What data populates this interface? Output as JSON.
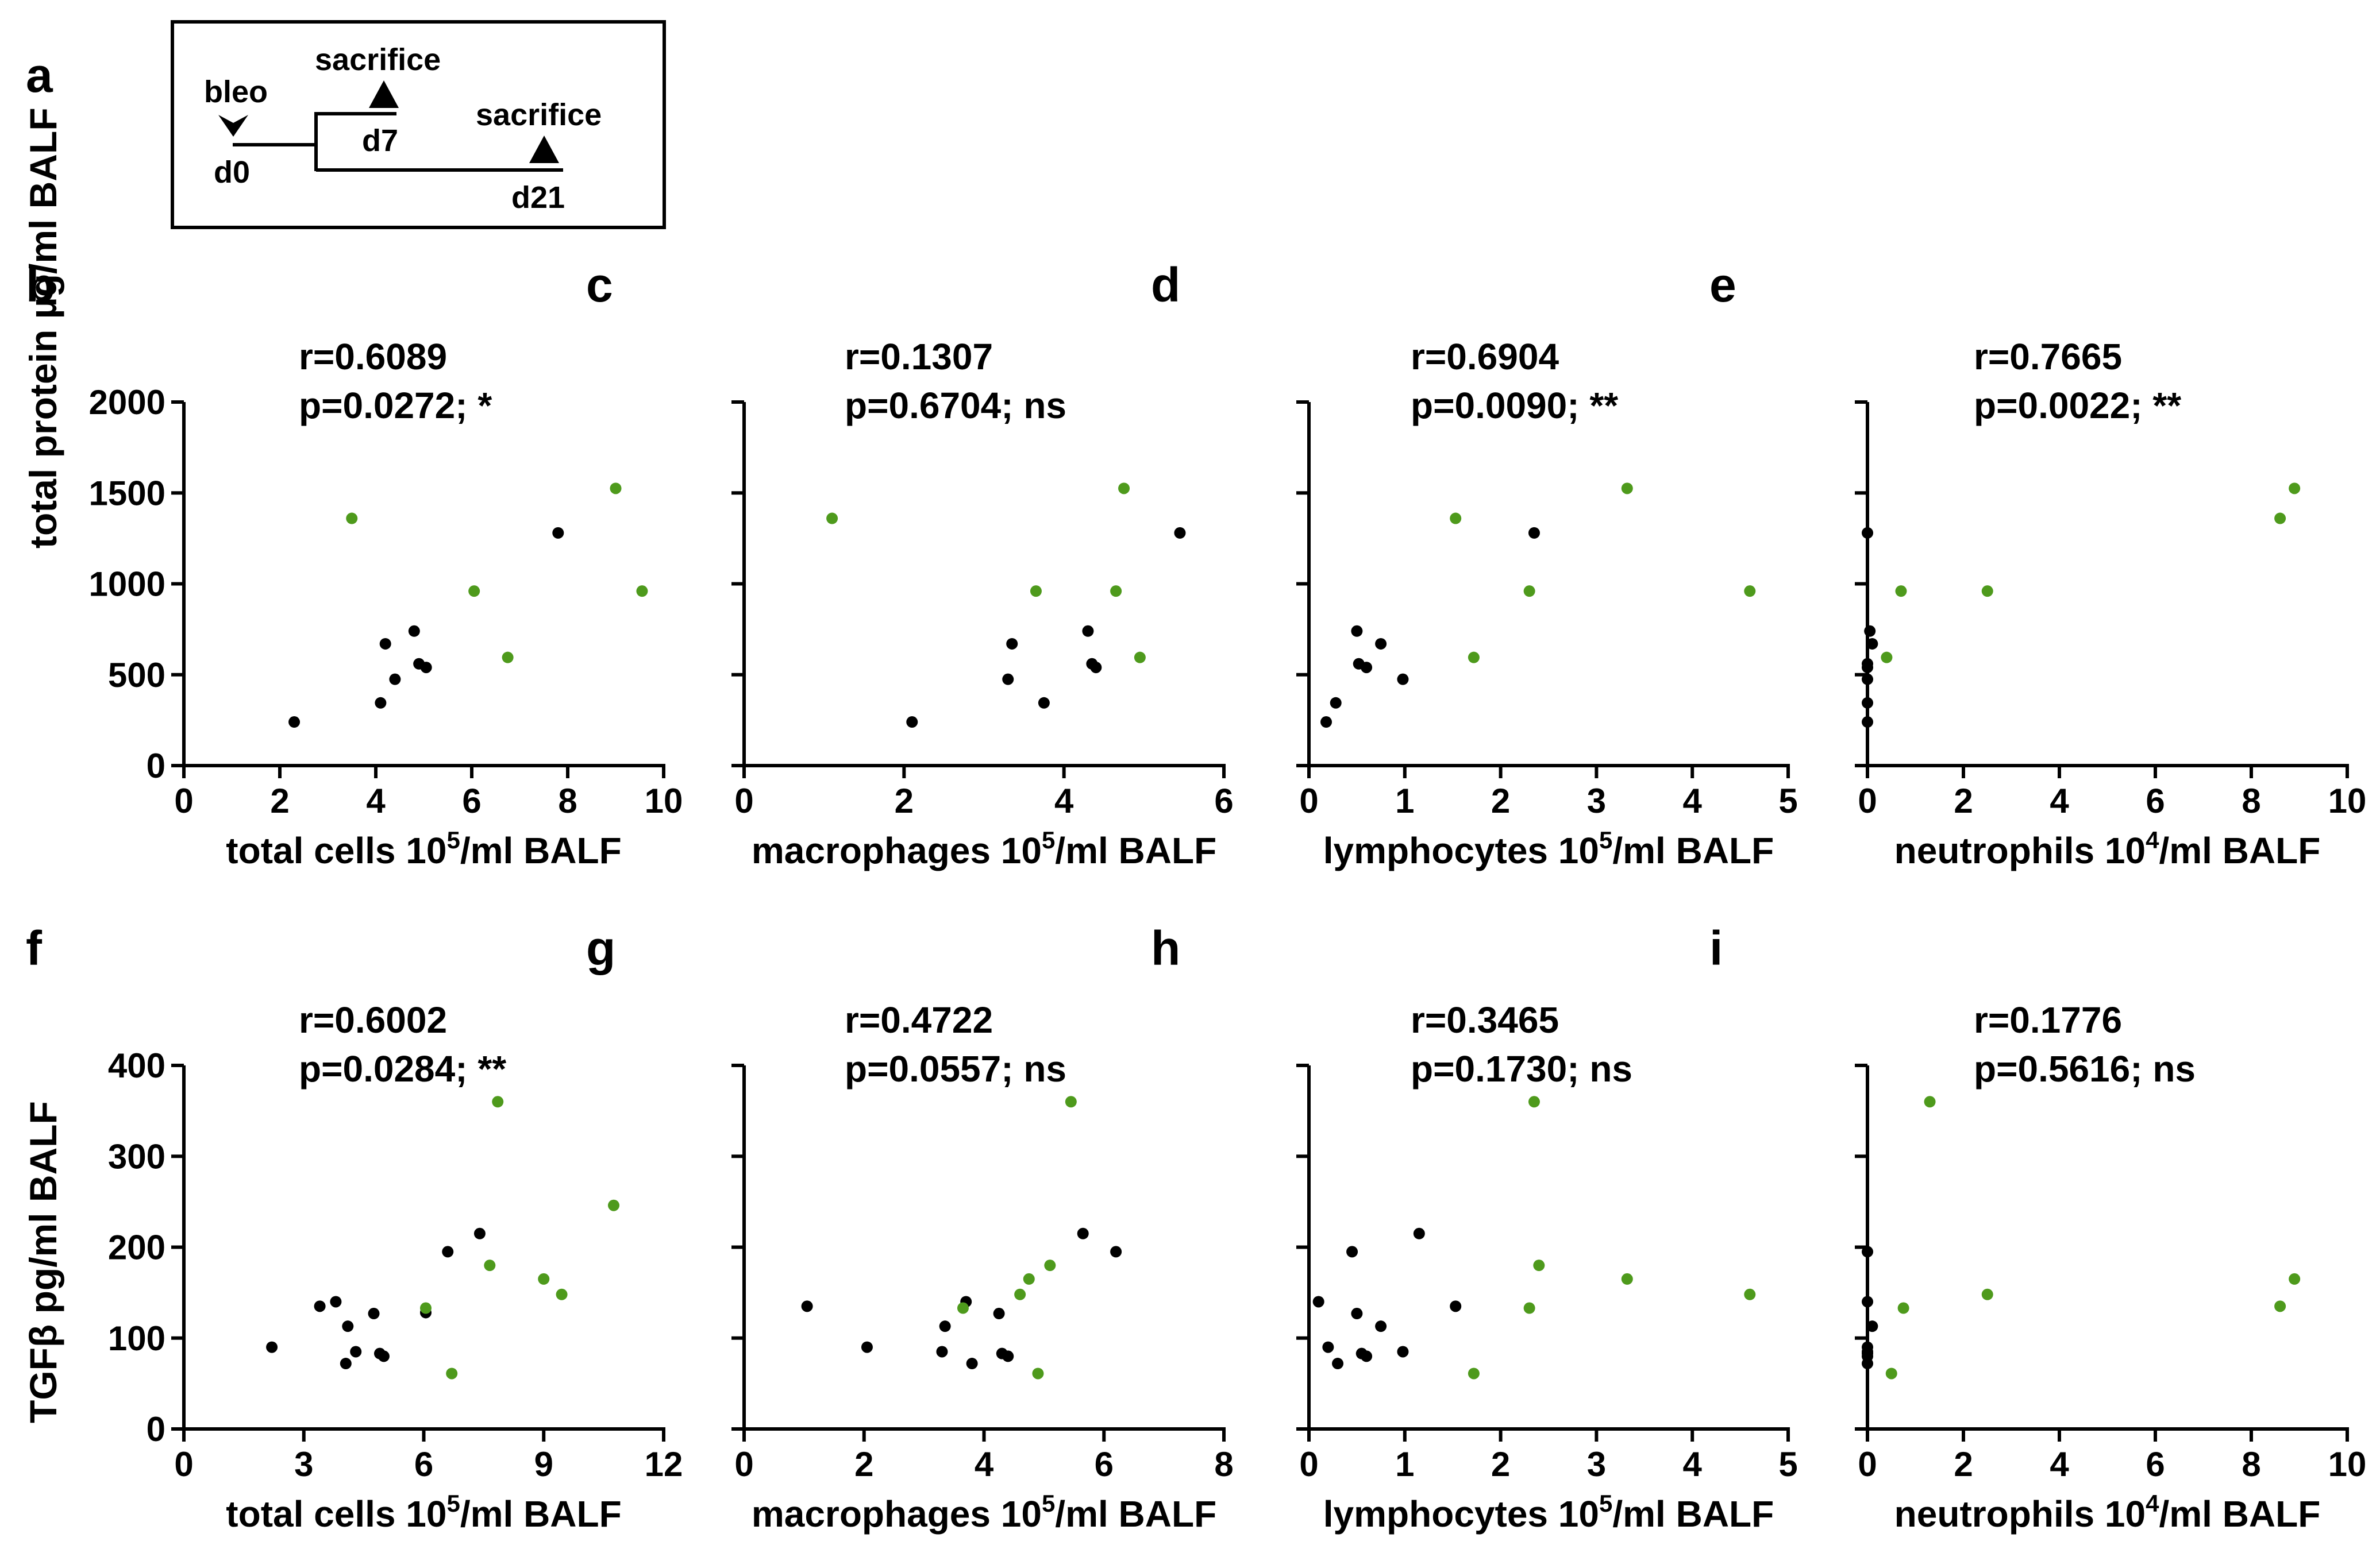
{
  "timeline": {
    "letter": "a",
    "bleo_label": "bleo",
    "d0_label": "d0",
    "d7_label": "d7",
    "d21_label": "d21",
    "sacrifice_label_1": "sacrifice",
    "sacrifice_label_2": "sacrifice"
  },
  "colors": {
    "day7": "#000000",
    "day21": "#4e9a1c"
  },
  "y_axis_labels": {
    "top": "total protein µg/ml BALF",
    "bottom": "TGFβ pg/ml BALF"
  },
  "chart_data": [
    {
      "type": "scatter",
      "letter": "b",
      "r": "r=0.6089",
      "p": "p=0.0272; *",
      "xlabel": "total cells 10",
      "xsup": "5",
      "xunit": "/ml BALF",
      "xlim": [
        0,
        10
      ],
      "xticks": [
        0,
        2,
        4,
        6,
        8,
        10
      ],
      "ylim": [
        0,
        2000
      ],
      "yticks": [
        0,
        500,
        1000,
        1500,
        2000
      ],
      "ytick_labels": [
        "0",
        "500",
        "1000",
        "1500",
        "2000"
      ],
      "series": [
        {
          "name": "d7",
          "color": "#000000",
          "points": [
            [
              2.3,
              240
            ],
            [
              4.1,
              345
            ],
            [
              4.2,
              670
            ],
            [
              4.4,
              475
            ],
            [
              4.8,
              740
            ],
            [
              4.9,
              560
            ],
            [
              5.05,
              540
            ],
            [
              7.8,
              1280
            ]
          ]
        },
        {
          "name": "d21",
          "color": "#4e9a1c",
          "points": [
            [
              3.5,
              1360
            ],
            [
              6.05,
              960
            ],
            [
              6.75,
              595
            ],
            [
              9.0,
              1525
            ],
            [
              9.55,
              960
            ]
          ]
        }
      ]
    },
    {
      "type": "scatter",
      "letter": "c",
      "r": "r=0.1307",
      "p": "p=0.6704; ns",
      "xlabel": "macrophages 10",
      "xsup": "5",
      "xunit": "/ml BALF",
      "xlim": [
        0,
        6
      ],
      "xticks": [
        0,
        2,
        4,
        6
      ],
      "ylim": [
        0,
        2000
      ],
      "yticks": [
        0,
        500,
        1000,
        1500,
        2000
      ],
      "ytick_labels": [
        "",
        "",
        "",
        "",
        ""
      ],
      "series": [
        {
          "name": "d7",
          "color": "#000000",
          "points": [
            [
              2.1,
              240
            ],
            [
              3.3,
              475
            ],
            [
              3.35,
              670
            ],
            [
              3.75,
              345
            ],
            [
              4.3,
              740
            ],
            [
              4.35,
              560
            ],
            [
              4.4,
              540
            ],
            [
              5.45,
              1280
            ]
          ]
        },
        {
          "name": "d21",
          "color": "#4e9a1c",
          "points": [
            [
              1.1,
              1360
            ],
            [
              3.65,
              960
            ],
            [
              4.65,
              960
            ],
            [
              4.75,
              1525
            ],
            [
              4.95,
              595
            ]
          ]
        }
      ]
    },
    {
      "type": "scatter",
      "letter": "d",
      "r": "r=0.6904",
      "p": "p=0.0090; **",
      "xlabel": "lymphocytes 10",
      "xsup": "5",
      "xunit": "/ml BALF",
      "xlim": [
        0,
        5
      ],
      "xticks": [
        0,
        1,
        2,
        3,
        4,
        5
      ],
      "ylim": [
        0,
        2000
      ],
      "yticks": [
        0,
        500,
        1000,
        1500,
        2000
      ],
      "ytick_labels": [
        "",
        "",
        "",
        "",
        ""
      ],
      "series": [
        {
          "name": "d7",
          "color": "#000000",
          "points": [
            [
              0.18,
              240
            ],
            [
              0.28,
              345
            ],
            [
              0.5,
              740
            ],
            [
              0.52,
              560
            ],
            [
              0.6,
              540
            ],
            [
              0.75,
              670
            ],
            [
              0.98,
              475
            ],
            [
              2.35,
              1280
            ]
          ]
        },
        {
          "name": "d21",
          "color": "#4e9a1c",
          "points": [
            [
              1.53,
              1360
            ],
            [
              1.72,
              595
            ],
            [
              2.3,
              960
            ],
            [
              3.32,
              1525
            ],
            [
              4.6,
              960
            ]
          ]
        }
      ]
    },
    {
      "type": "scatter",
      "letter": "e",
      "r": "r=0.7665",
      "p": "p=0.0022; **",
      "xlabel": "neutrophils 10",
      "xsup": "4",
      "xunit": "/ml BALF",
      "xlim": [
        0,
        10
      ],
      "xticks": [
        0,
        2,
        4,
        6,
        8,
        10
      ],
      "ylim": [
        0,
        2000
      ],
      "yticks": [
        0,
        500,
        1000,
        1500,
        2000
      ],
      "ytick_labels": [
        "",
        "",
        "",
        "",
        ""
      ],
      "series": [
        {
          "name": "d7",
          "color": "#000000",
          "points": [
            [
              0.0,
              1280
            ],
            [
              0.05,
              740
            ],
            [
              0.1,
              670
            ],
            [
              0.0,
              560
            ],
            [
              0.0,
              540
            ],
            [
              0.0,
              475
            ],
            [
              0.0,
              345
            ],
            [
              0.0,
              240
            ]
          ]
        },
        {
          "name": "d21",
          "color": "#4e9a1c",
          "points": [
            [
              0.4,
              595
            ],
            [
              0.7,
              960
            ],
            [
              2.5,
              960
            ],
            [
              8.6,
              1360
            ],
            [
              8.9,
              1525
            ]
          ]
        }
      ]
    },
    {
      "type": "scatter",
      "letter": "f",
      "r": "r=0.6002",
      "p": "p=0.0284; **",
      "xlabel": "total cells 10",
      "xsup": "5",
      "xunit": "/ml BALF",
      "xlim": [
        0,
        12
      ],
      "xticks": [
        0,
        3,
        6,
        9,
        12
      ],
      "ylim": [
        0,
        400
      ],
      "yticks": [
        0,
        100,
        200,
        300,
        400
      ],
      "ytick_labels": [
        "0",
        "100",
        "200",
        "300",
        "400"
      ],
      "series": [
        {
          "name": "d7",
          "color": "#000000",
          "points": [
            [
              2.2,
              90
            ],
            [
              3.4,
              135
            ],
            [
              3.8,
              140
            ],
            [
              4.05,
              72
            ],
            [
              4.1,
              113
            ],
            [
              4.3,
              85
            ],
            [
              4.75,
              127
            ],
            [
              4.9,
              83
            ],
            [
              5.0,
              80
            ],
            [
              6.05,
              128
            ],
            [
              6.6,
              195
            ],
            [
              7.4,
              215
            ]
          ]
        },
        {
          "name": "d21",
          "color": "#4e9a1c",
          "points": [
            [
              6.05,
              133
            ],
            [
              6.7,
              61
            ],
            [
              7.65,
              180
            ],
            [
              7.85,
              360
            ],
            [
              9.0,
              165
            ],
            [
              9.45,
              148
            ],
            [
              10.75,
              246
            ]
          ]
        }
      ]
    },
    {
      "type": "scatter",
      "letter": "g",
      "r": "r=0.4722",
      "p": "p=0.0557; ns",
      "xlabel": "macrophages 10",
      "xsup": "5",
      "xunit": "/ml BALF",
      "xlim": [
        0,
        8
      ],
      "xticks": [
        0,
        2,
        4,
        6,
        8
      ],
      "ylim": [
        0,
        400
      ],
      "yticks": [
        0,
        100,
        200,
        300,
        400
      ],
      "ytick_labels": [
        "",
        "",
        "",
        "",
        ""
      ],
      "series": [
        {
          "name": "d7",
          "color": "#000000",
          "points": [
            [
              1.05,
              135
            ],
            [
              2.05,
              90
            ],
            [
              3.3,
              85
            ],
            [
              3.35,
              113
            ],
            [
              3.7,
              140
            ],
            [
              3.8,
              72
            ],
            [
              4.25,
              127
            ],
            [
              4.3,
              83
            ],
            [
              4.4,
              80
            ],
            [
              5.65,
              215
            ],
            [
              6.2,
              195
            ]
          ]
        },
        {
          "name": "d21",
          "color": "#4e9a1c",
          "points": [
            [
              3.65,
              133
            ],
            [
              4.6,
              148
            ],
            [
              4.75,
              165
            ],
            [
              4.9,
              61
            ],
            [
              5.1,
              180
            ],
            [
              5.45,
              360
            ]
          ]
        }
      ]
    },
    {
      "type": "scatter",
      "letter": "h",
      "r": "r=0.3465",
      "p": "p=0.1730; ns",
      "xlabel": "lymphocytes 10",
      "xsup": "5",
      "xunit": "/ml BALF",
      "xlim": [
        0,
        5
      ],
      "xticks": [
        0,
        1,
        2,
        3,
        4,
        5
      ],
      "ylim": [
        0,
        400
      ],
      "yticks": [
        0,
        100,
        200,
        300,
        400
      ],
      "ytick_labels": [
        "",
        "",
        "",
        "",
        ""
      ],
      "series": [
        {
          "name": "d7",
          "color": "#000000",
          "points": [
            [
              0.1,
              140
            ],
            [
              0.2,
              90
            ],
            [
              0.3,
              72
            ],
            [
              0.45,
              195
            ],
            [
              0.5,
              127
            ],
            [
              0.55,
              83
            ],
            [
              0.6,
              80
            ],
            [
              0.75,
              113
            ],
            [
              0.98,
              85
            ],
            [
              1.15,
              215
            ],
            [
              1.53,
              135
            ]
          ]
        },
        {
          "name": "d21",
          "color": "#4e9a1c",
          "points": [
            [
              1.72,
              61
            ],
            [
              2.3,
              133
            ],
            [
              2.35,
              360
            ],
            [
              2.4,
              180
            ],
            [
              3.32,
              165
            ],
            [
              4.6,
              148
            ]
          ]
        }
      ]
    },
    {
      "type": "scatter",
      "letter": "i",
      "r": "r=0.1776",
      "p": "p=0.5616; ns",
      "xlabel": "neutrophils 10",
      "xsup": "4",
      "xunit": "/ml BALF",
      "xlim": [
        0,
        10
      ],
      "xticks": [
        0,
        2,
        4,
        6,
        8,
        10
      ],
      "ylim": [
        0,
        400
      ],
      "yticks": [
        0,
        100,
        200,
        300,
        400
      ],
      "ytick_labels": [
        "",
        "",
        "",
        "",
        ""
      ],
      "series": [
        {
          "name": "d7",
          "color": "#000000",
          "points": [
            [
              0.0,
              195
            ],
            [
              0.0,
              140
            ],
            [
              0.1,
              113
            ],
            [
              0.0,
              90
            ],
            [
              0.0,
              85
            ],
            [
              0.0,
              83
            ],
            [
              0.0,
              80
            ],
            [
              0.0,
              72
            ]
          ]
        },
        {
          "name": "d21",
          "color": "#4e9a1c",
          "points": [
            [
              0.5,
              61
            ],
            [
              0.75,
              133
            ],
            [
              1.3,
              360
            ],
            [
              2.5,
              148
            ],
            [
              8.6,
              135
            ],
            [
              8.9,
              165
            ]
          ]
        }
      ]
    }
  ]
}
